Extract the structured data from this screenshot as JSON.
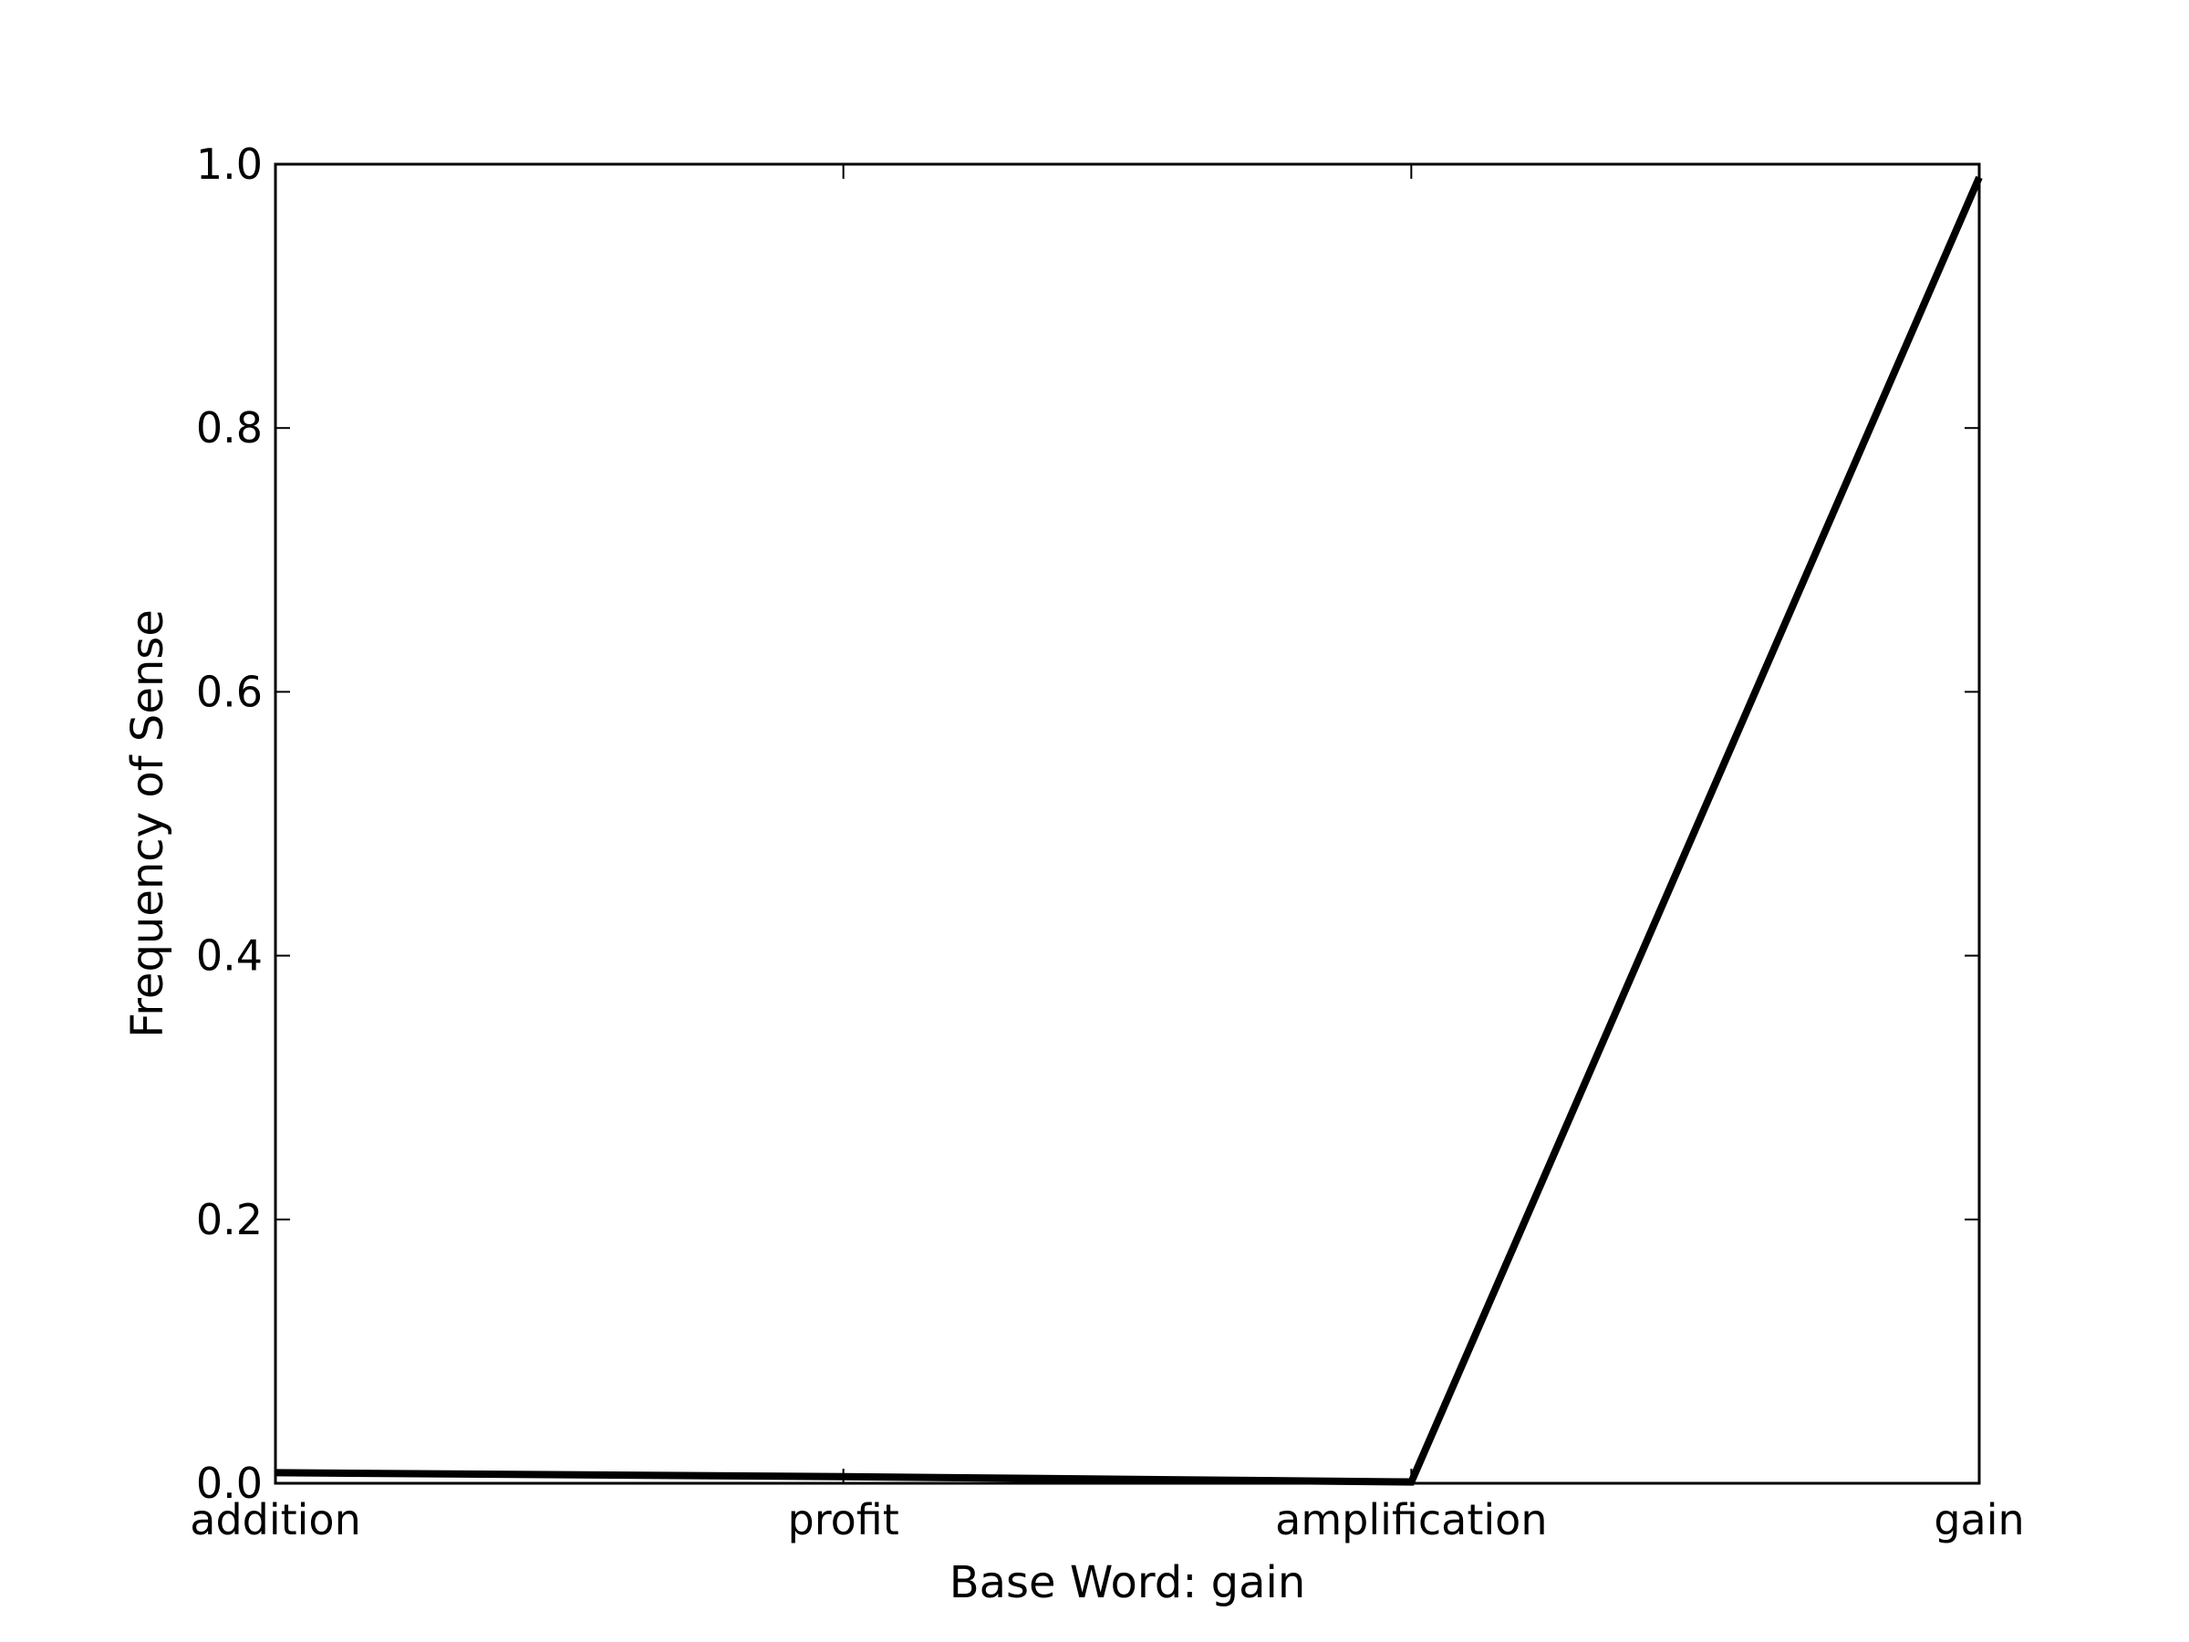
{
  "chart_data": {
    "type": "line",
    "categories": [
      "addition",
      "profit",
      "amplification",
      "gain"
    ],
    "series": [
      {
        "values": [
          0.008,
          0.005,
          0.001,
          0.99
        ]
      }
    ],
    "xlabel": "Base Word: gain",
    "ylabel": "Frequency of Sense",
    "ylim": [
      0,
      1.0
    ],
    "yticks": [
      0.0,
      0.2,
      0.4,
      0.6,
      0.8,
      1.0
    ],
    "ytick_labels": [
      "0.0",
      "0.2",
      "0.4",
      "0.6",
      "0.8",
      "1.0"
    ],
    "grid": false,
    "line_color": "#000000"
  }
}
